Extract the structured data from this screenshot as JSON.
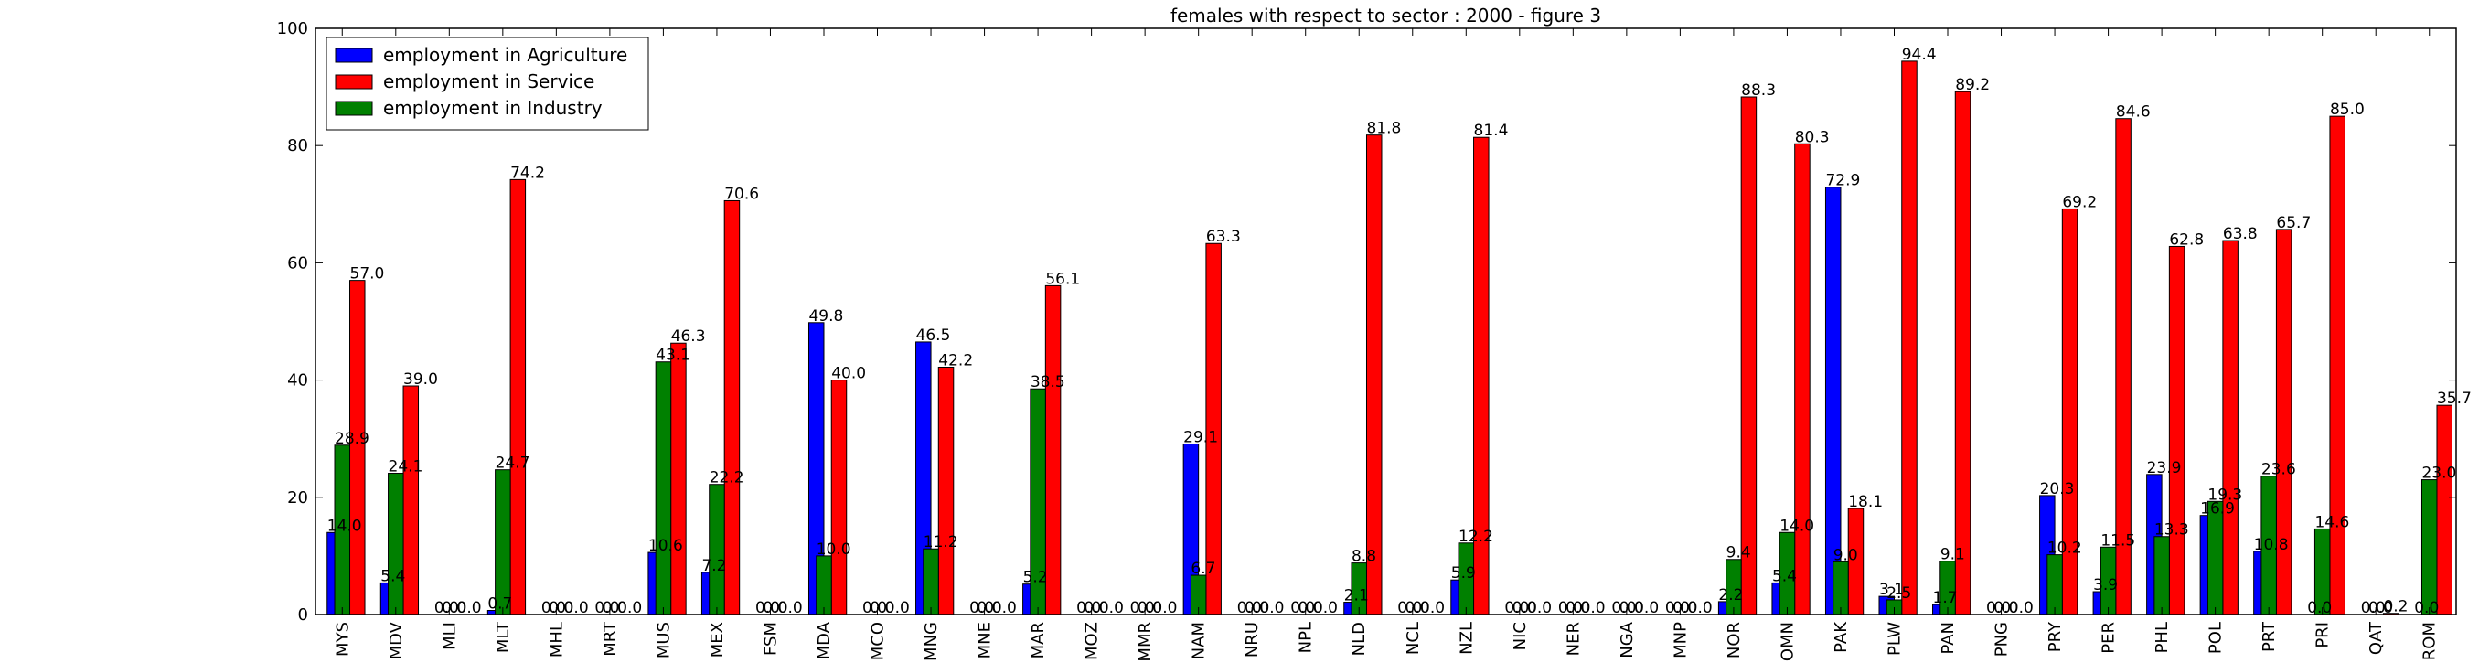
{
  "chart_data": {
    "type": "bar",
    "title": "females with respect to sector : 2000 - figure 3",
    "xlabel": "",
    "ylabel": "",
    "ylim": [
      0,
      100
    ],
    "yticks": [
      "0",
      "20",
      "40",
      "60",
      "80",
      "100"
    ],
    "grid": false,
    "legend_position": "top-left",
    "categories": [
      "MYS",
      "MDV",
      "MLI",
      "MLT",
      "MHL",
      "MRT",
      "MUS",
      "MEX",
      "FSM",
      "MDA",
      "MCO",
      "MNG",
      "MNE",
      "MAR",
      "MOZ",
      "MMR",
      "NAM",
      "NRU",
      "NPL",
      "NLD",
      "NCL",
      "NZL",
      "NIC",
      "NER",
      "NGA",
      "MNP",
      "NOR",
      "OMN",
      "PAK",
      "PLW",
      "PAN",
      "PNG",
      "PRY",
      "PER",
      "PHL",
      "POL",
      "PRT",
      "PRI",
      "QAT",
      "ROM"
    ],
    "series": [
      {
        "name": "employment in Agriculture",
        "color": "#0000ff",
        "values": [
          14.0,
          5.4,
          0.0,
          0.7,
          0.0,
          0.0,
          10.6,
          7.2,
          0.0,
          49.8,
          0.0,
          46.5,
          0.0,
          5.2,
          0.0,
          0.0,
          29.1,
          0.0,
          0.0,
          2.1,
          0.0,
          5.9,
          0.0,
          0.0,
          0.0,
          0.0,
          2.2,
          5.4,
          72.9,
          3.1,
          1.7,
          0.0,
          20.3,
          3.9,
          23.9,
          16.9,
          10.8,
          0.0,
          0.0,
          0.0
        ]
      },
      {
        "name": "employment in Service",
        "color": "#ff0000",
        "values": [
          57.0,
          39.0,
          0.0,
          74.2,
          0.0,
          0.0,
          46.3,
          70.6,
          0.0,
          40.0,
          0.0,
          42.2,
          0.0,
          56.1,
          0.0,
          0.0,
          63.3,
          0.0,
          0.0,
          81.8,
          0.0,
          81.4,
          0.0,
          0.0,
          0.0,
          0.0,
          88.3,
          80.3,
          18.1,
          94.4,
          89.2,
          0.0,
          69.2,
          84.6,
          62.8,
          63.8,
          65.7,
          85.0,
          0.2,
          35.7
        ]
      },
      {
        "name": "employment in Industry",
        "color": "#008000",
        "values": [
          28.9,
          24.1,
          0.0,
          24.7,
          0.0,
          0.0,
          43.1,
          22.2,
          0.0,
          10.0,
          0.0,
          11.2,
          0.0,
          38.5,
          0.0,
          0.0,
          6.7,
          0.0,
          0.0,
          8.8,
          0.0,
          12.2,
          0.0,
          0.0,
          0.0,
          0.0,
          9.4,
          14.0,
          9.0,
          2.5,
          9.1,
          0.0,
          10.2,
          11.5,
          13.3,
          19.3,
          23.6,
          14.6,
          0.0,
          23.0
        ]
      }
    ]
  }
}
